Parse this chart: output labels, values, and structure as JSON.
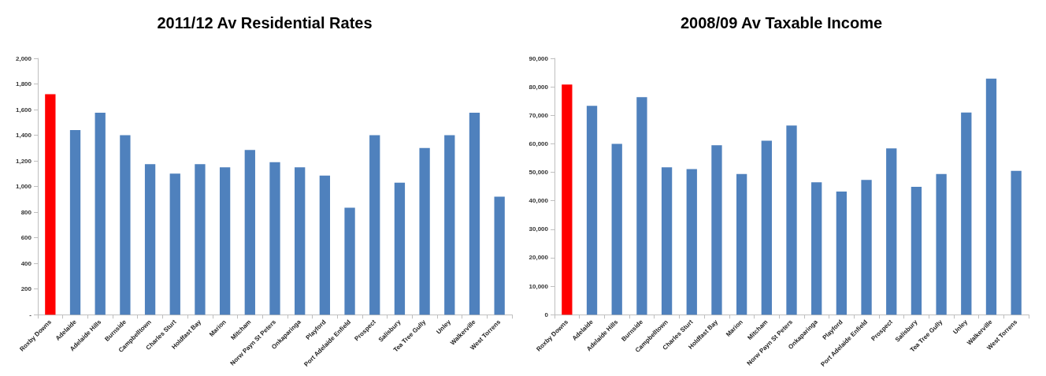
{
  "chart_data": [
    {
      "type": "bar",
      "title": "2011/12 Av Residential Rates",
      "categories": [
        "Roxby Downs",
        "Adelaide",
        "Adelaide Hills",
        "Burnside",
        "Campbelltown",
        "Charles Sturt",
        "Holdfast Bay",
        "Marion",
        "Mitcham",
        "Norw Payn St Peters",
        "Onkaparinga",
        "Playford",
        "Port Adelaide Enfield",
        "Prospect",
        "Salisbury",
        "Tea Tree Gully",
        "Unley",
        "Walkerville",
        "West Torrens"
      ],
      "values": [
        1720,
        1440,
        1575,
        1400,
        1175,
        1100,
        1175,
        1150,
        1285,
        1190,
        1150,
        1085,
        835,
        1400,
        1030,
        1300,
        1400,
        1575,
        920
      ],
      "colors": [
        "#ff0000",
        "#4f81bd",
        "#4f81bd",
        "#4f81bd",
        "#4f81bd",
        "#4f81bd",
        "#4f81bd",
        "#4f81bd",
        "#4f81bd",
        "#4f81bd",
        "#4f81bd",
        "#4f81bd",
        "#4f81bd",
        "#4f81bd",
        "#4f81bd",
        "#4f81bd",
        "#4f81bd",
        "#4f81bd",
        "#4f81bd"
      ],
      "ylim": [
        0,
        2000
      ],
      "yticks": [
        {
          "value": 0,
          "label": "-"
        },
        {
          "value": 200,
          "label": "200"
        },
        {
          "value": 400,
          "label": "400"
        },
        {
          "value": 600,
          "label": "600"
        },
        {
          "value": 800,
          "label": "800"
        },
        {
          "value": 1000,
          "label": "1,000"
        },
        {
          "value": 1200,
          "label": "1,200"
        },
        {
          "value": 1400,
          "label": "1,400"
        },
        {
          "value": 1600,
          "label": "1,600"
        },
        {
          "value": 1800,
          "label": "1,800"
        },
        {
          "value": 2000,
          "label": "2,000"
        }
      ],
      "grid": false
    },
    {
      "type": "bar",
      "title": "2008/09 Av Taxable Income",
      "categories": [
        "Roxby Downs",
        "Adelaide",
        "Adelaide Hills",
        "Burnside",
        "Campbelltown",
        "Charles Sturt",
        "Holdfast Bay",
        "Marion",
        "Mitcham",
        "Norw Payn St Peters",
        "Onkaparinga",
        "Playford",
        "Port Adelaide Enfield",
        "Prospect",
        "Salisbury",
        "Tea Tree Gully",
        "Unley",
        "Walkerville",
        "West Torrens"
      ],
      "values": [
        80800,
        73300,
        60000,
        76400,
        51700,
        51100,
        59500,
        49400,
        61100,
        66400,
        46500,
        43200,
        47300,
        58400,
        44900,
        49400,
        71000,
        82900,
        50500
      ],
      "colors": [
        "#ff0000",
        "#4f81bd",
        "#4f81bd",
        "#4f81bd",
        "#4f81bd",
        "#4f81bd",
        "#4f81bd",
        "#4f81bd",
        "#4f81bd",
        "#4f81bd",
        "#4f81bd",
        "#4f81bd",
        "#4f81bd",
        "#4f81bd",
        "#4f81bd",
        "#4f81bd",
        "#4f81bd",
        "#4f81bd",
        "#4f81bd"
      ],
      "ylim": [
        0,
        90000
      ],
      "yticks": [
        0,
        {
          "value": 10000,
          "label": "10,000"
        },
        {
          "value": 20000,
          "label": "20,000"
        },
        {
          "value": 30000,
          "label": "30,000"
        },
        {
          "value": 40000,
          "label": "40,000"
        },
        {
          "value": 50000,
          "label": "50,000"
        },
        {
          "value": 60000,
          "label": "60,000"
        },
        {
          "value": 70000,
          "label": "70,000"
        },
        {
          "value": 80000,
          "label": "80,000"
        },
        {
          "value": 90000,
          "label": "90,000"
        }
      ],
      "grid": false
    }
  ]
}
